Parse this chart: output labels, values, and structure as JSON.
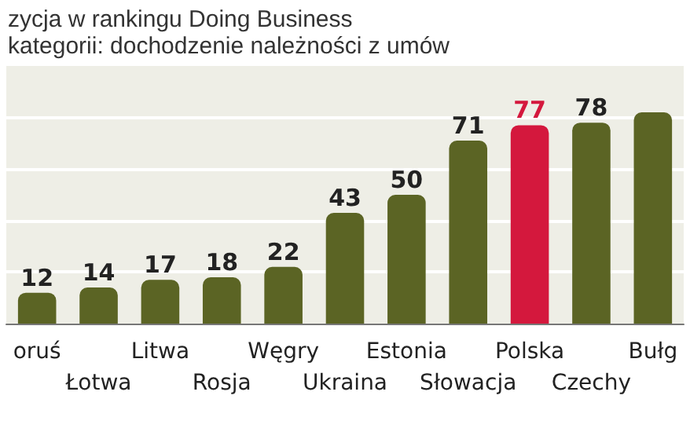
{
  "chart_data": {
    "type": "bar",
    "title": "zycja w rankingu Doing Business",
    "subtitle": "kategorii: dochodzenie należności z umów",
    "categories": [
      "oruś",
      "Łotwa",
      "Litwa",
      "Rosja",
      "Węgry",
      "Ukraina",
      "Estonia",
      "Słowacja",
      "Polska",
      "Czechy",
      "Bułg"
    ],
    "values": [
      12,
      14,
      17,
      18,
      22,
      43,
      50,
      71,
      77,
      78,
      82
    ],
    "value_labels": [
      "12",
      "14",
      "17",
      "18",
      "22",
      "43",
      "50",
      "71",
      "77",
      "78",
      null
    ],
    "colors": [
      "#5b6424",
      "#5b6424",
      "#5b6424",
      "#5b6424",
      "#5b6424",
      "#5b6424",
      "#5b6424",
      "#5b6424",
      "#d4183d",
      "#5b6424",
      "#5b6424"
    ],
    "ylim": [
      0,
      100
    ],
    "yticks": [
      {
        "value": 20,
        "label": null
      },
      {
        "value": 40,
        "label": null
      },
      {
        "value": 60,
        "label": null
      },
      {
        "value": 80,
        "label": null
      }
    ],
    "grid": "y"
  }
}
